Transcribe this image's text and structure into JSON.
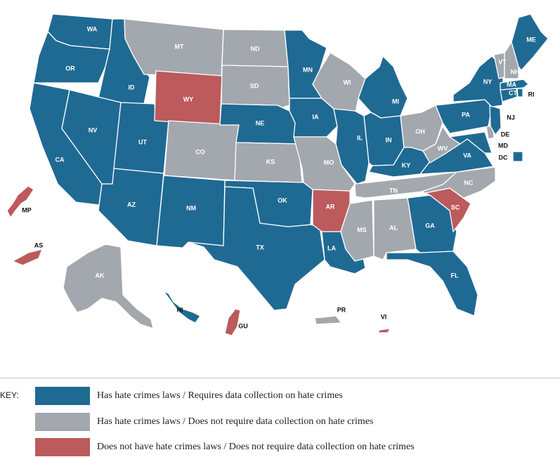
{
  "colors": {
    "has_laws_requires_data": "#1f6a93",
    "has_laws_no_data": "#a3a8ae",
    "no_laws_no_data": "#bc5a5c",
    "border": "#ffffff",
    "label_on_fill": "#ffffff",
    "label_outside": "#111111"
  },
  "key": {
    "title": "KEY:",
    "items": [
      {
        "category": "has_laws_requires_data",
        "label": "Has hate crimes laws / Requires data collection on hate crimes"
      },
      {
        "category": "has_laws_no_data",
        "label": "Has hate crimes laws / Does not require data collection on hate crimes"
      },
      {
        "category": "no_laws_no_data",
        "label": "Does not have hate crimes laws / Does not require data collection on hate crimes"
      }
    ]
  },
  "states": {
    "WA": "has_laws_requires_data",
    "OR": "has_laws_requires_data",
    "CA": "has_laws_requires_data",
    "ID": "has_laws_requires_data",
    "NV": "has_laws_requires_data",
    "UT": "has_laws_requires_data",
    "AZ": "has_laws_requires_data",
    "MT": "has_laws_no_data",
    "WY": "no_laws_no_data",
    "CO": "has_laws_no_data",
    "NM": "has_laws_requires_data",
    "ND": "has_laws_no_data",
    "SD": "has_laws_no_data",
    "NE": "has_laws_requires_data",
    "KS": "has_laws_no_data",
    "OK": "has_laws_requires_data",
    "TX": "has_laws_requires_data",
    "MN": "has_laws_requires_data",
    "IA": "has_laws_requires_data",
    "MO": "has_laws_no_data",
    "AR": "no_laws_no_data",
    "LA": "has_laws_requires_data",
    "WI": "has_laws_no_data",
    "IL": "has_laws_requires_data",
    "MI": "has_laws_requires_data",
    "IN": "has_laws_requires_data",
    "OH": "has_laws_no_data",
    "KY": "has_laws_requires_data",
    "TN": "has_laws_no_data",
    "MS": "has_laws_no_data",
    "AL": "has_laws_no_data",
    "GA": "has_laws_requires_data",
    "FL": "has_laws_requires_data",
    "SC": "no_laws_no_data",
    "NC": "has_laws_no_data",
    "VA": "has_laws_requires_data",
    "WV": "has_laws_no_data",
    "MD": "has_laws_requires_data",
    "DE": "has_laws_no_data",
    "DC": "has_laws_requires_data",
    "PA": "has_laws_requires_data",
    "NJ": "has_laws_requires_data",
    "NY": "has_laws_requires_data",
    "CT": "has_laws_requires_data",
    "RI": "has_laws_requires_data",
    "MA": "has_laws_requires_data",
    "VT": "has_laws_no_data",
    "NH": "has_laws_no_data",
    "ME": "has_laws_requires_data",
    "AK": "has_laws_no_data",
    "HI": "has_laws_requires_data",
    "PR": "has_laws_no_data",
    "VI": "no_laws_no_data",
    "GU": "no_laws_no_data",
    "AS": "no_laws_no_data",
    "MP": "no_laws_no_data"
  }
}
